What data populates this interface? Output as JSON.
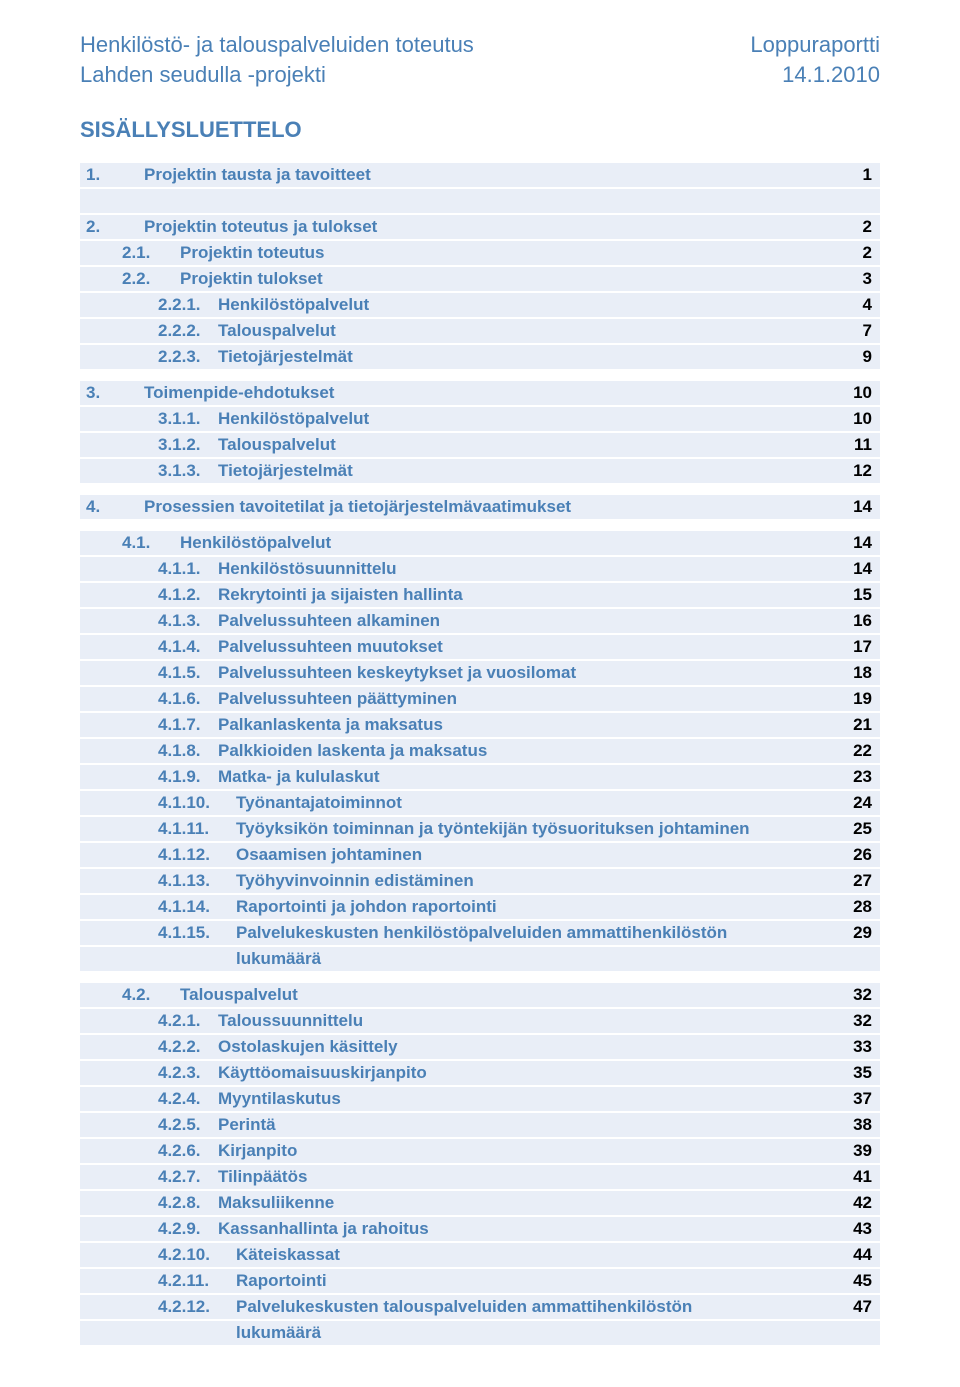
{
  "header": {
    "left_line1": "Henkilöstö- ja talouspalveluiden toteutus",
    "left_line2": "Lahden seudulla -projekti",
    "right_line1": "Loppuraportti",
    "right_line2": "14.1.2010"
  },
  "title": "SISÄLLYSLUETTELO",
  "toc": [
    {
      "type": "row",
      "cls": "lvl-1",
      "num": "1.",
      "label": "Projektin tausta ja tavoitteet",
      "page": "1"
    },
    {
      "type": "spacer"
    },
    {
      "type": "row",
      "cls": "lvl-1",
      "num": "2.",
      "label": "Projektin toteutus ja tulokset",
      "page": "2"
    },
    {
      "type": "row",
      "cls": "lvl-2",
      "num": "2.1.",
      "label": "Projektin toteutus",
      "page": "2"
    },
    {
      "type": "row",
      "cls": "lvl-2",
      "num": "2.2.",
      "label": "Projektin tulokset",
      "page": "3"
    },
    {
      "type": "row",
      "cls": "lvl-3",
      "num": "2.2.1.",
      "label": "Henkilöstöpalvelut",
      "page": "4"
    },
    {
      "type": "row",
      "cls": "lvl-3",
      "num": "2.2.2.",
      "label": "Talouspalvelut",
      "page": "7"
    },
    {
      "type": "row",
      "cls": "lvl-3",
      "num": "2.2.3.",
      "label": "Tietojärjestelmät",
      "page": "9"
    },
    {
      "type": "gap"
    },
    {
      "type": "row",
      "cls": "lvl-1",
      "num": "3.",
      "label": "Toimenpide-ehdotukset",
      "page": "10"
    },
    {
      "type": "row",
      "cls": "lvl-3",
      "num": "3.1.1.",
      "label": "Henkilöstöpalvelut",
      "page": "10"
    },
    {
      "type": "row",
      "cls": "lvl-3",
      "num": "3.1.2.",
      "label": "Talouspalvelut",
      "page": "11"
    },
    {
      "type": "row",
      "cls": "lvl-3",
      "num": "3.1.3.",
      "label": "Tietojärjestelmät",
      "page": "12"
    },
    {
      "type": "gap"
    },
    {
      "type": "row",
      "cls": "lvl-1",
      "num": "4.",
      "label": "Prosessien tavoitetilat ja tietojärjestelmävaatimukset",
      "page": "14"
    },
    {
      "type": "gap"
    },
    {
      "type": "row",
      "cls": "lvl-2",
      "num": "4.1.",
      "label": "Henkilöstöpalvelut",
      "page": "14"
    },
    {
      "type": "row",
      "cls": "lvl-3",
      "num": "4.1.1.",
      "label": "Henkilöstösuunnittelu",
      "page": "14"
    },
    {
      "type": "row",
      "cls": "lvl-3",
      "num": "4.1.2.",
      "label": "Rekrytointi ja sijaisten hallinta",
      "page": "15"
    },
    {
      "type": "row",
      "cls": "lvl-3",
      "num": "4.1.3.",
      "label": "Palvelussuhteen alkaminen",
      "page": "16"
    },
    {
      "type": "row",
      "cls": "lvl-3",
      "num": "4.1.4.",
      "label": "Palvelussuhteen muutokset",
      "page": "17"
    },
    {
      "type": "row",
      "cls": "lvl-3",
      "num": "4.1.5.",
      "label": "Palvelussuhteen keskeytykset ja vuosilomat",
      "page": "18"
    },
    {
      "type": "row",
      "cls": "lvl-3",
      "num": "4.1.6.",
      "label": "Palvelussuhteen päättyminen",
      "page": "19"
    },
    {
      "type": "row",
      "cls": "lvl-3",
      "num": "4.1.7.",
      "label": "Palkanlaskenta ja maksatus",
      "page": "21"
    },
    {
      "type": "row",
      "cls": "lvl-3",
      "num": "4.1.8.",
      "label": "Palkkioiden laskenta ja maksatus",
      "page": "22"
    },
    {
      "type": "row",
      "cls": "lvl-3",
      "num": "4.1.9.",
      "label": "Matka- ja kululaskut",
      "page": "23"
    },
    {
      "type": "row",
      "cls": "lvl-3w",
      "num": "4.1.10.",
      "label": "Työnantajatoiminnot",
      "page": "24"
    },
    {
      "type": "row",
      "cls": "lvl-3w",
      "num": "4.1.11.",
      "label": "Työyksikön toiminnan ja työntekijän työsuorituksen johtaminen",
      "page": "25"
    },
    {
      "type": "row",
      "cls": "lvl-3w",
      "num": "4.1.12.",
      "label": "Osaamisen johtaminen",
      "page": "26"
    },
    {
      "type": "row",
      "cls": "lvl-3w",
      "num": "4.1.13.",
      "label": "Työhyvinvoinnin edistäminen",
      "page": "27"
    },
    {
      "type": "row",
      "cls": "lvl-3w",
      "num": "4.1.14.",
      "label": "Raportointi ja johdon raportointi",
      "page": "28"
    },
    {
      "type": "row",
      "cls": "lvl-3w",
      "num": "4.1.15.",
      "label": "Palvelukeskusten henkilöstöpalveluiden ammattihenkilöstön",
      "page": "29"
    },
    {
      "type": "row",
      "cls": "continuation",
      "num": "",
      "label": "lukumäärä",
      "page": ""
    },
    {
      "type": "gap"
    },
    {
      "type": "row",
      "cls": "lvl-2",
      "num": "4.2.",
      "label": "Talouspalvelut",
      "page": "32"
    },
    {
      "type": "row",
      "cls": "lvl-3",
      "num": "4.2.1.",
      "label": "Taloussuunnittelu",
      "page": "32"
    },
    {
      "type": "row",
      "cls": "lvl-3",
      "num": "4.2.2.",
      "label": "Ostolaskujen käsittely",
      "page": "33"
    },
    {
      "type": "row",
      "cls": "lvl-3",
      "num": "4.2.3.",
      "label": "Käyttöomaisuuskirjanpito",
      "page": "35"
    },
    {
      "type": "row",
      "cls": "lvl-3",
      "num": "4.2.4.",
      "label": "Myyntilaskutus",
      "page": "37"
    },
    {
      "type": "row",
      "cls": "lvl-3",
      "num": "4.2.5.",
      "label": "Perintä",
      "page": "38"
    },
    {
      "type": "row",
      "cls": "lvl-3",
      "num": "4.2.6.",
      "label": "Kirjanpito",
      "page": "39"
    },
    {
      "type": "row",
      "cls": "lvl-3",
      "num": "4.2.7.",
      "label": "Tilinpäätös",
      "page": "41"
    },
    {
      "type": "row",
      "cls": "lvl-3",
      "num": "4.2.8.",
      "label": "Maksuliikenne",
      "page": "42"
    },
    {
      "type": "row",
      "cls": "lvl-3",
      "num": "4.2.9.",
      "label": "Kassanhallinta ja rahoitus",
      "page": "43"
    },
    {
      "type": "row",
      "cls": "lvl-3w",
      "num": "4.2.10.",
      "label": "Käteiskassat",
      "page": "44"
    },
    {
      "type": "row",
      "cls": "lvl-3w",
      "num": "4.2.11.",
      "label": "Raportointi",
      "page": "45"
    },
    {
      "type": "row",
      "cls": "lvl-3w",
      "num": "4.2.12.",
      "label": "Palvelukeskusten talouspalveluiden ammattihenkilöstön",
      "page": "47"
    },
    {
      "type": "row",
      "cls": "continuation",
      "num": "",
      "label": "lukumäärä",
      "page": ""
    }
  ]
}
